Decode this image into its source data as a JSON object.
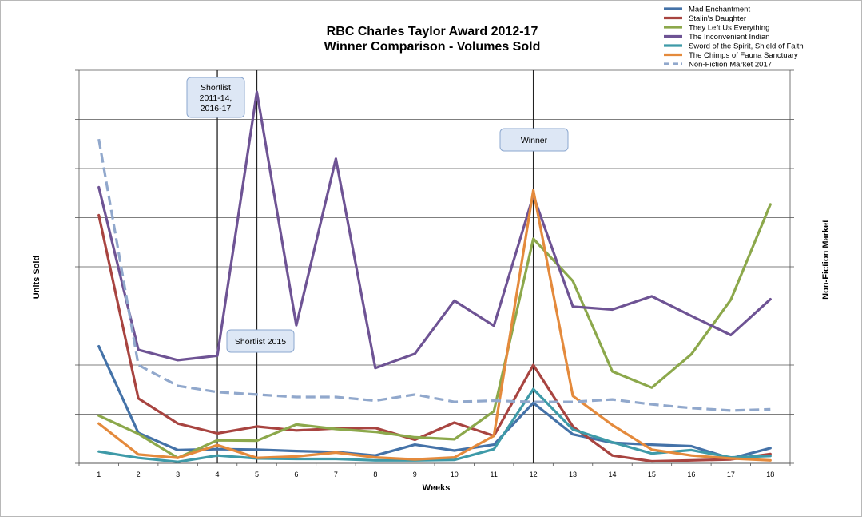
{
  "chart_data": {
    "type": "line",
    "title": "RBC Charles Taylor Award 2012-17",
    "subtitle": "Winner Comparison - Volumes Sold",
    "xlabel": "Weeks",
    "ylabel": "Units Sold",
    "y2label": "Non-Fiction Market",
    "grid": true,
    "legend_position": "top-right",
    "x": [
      1,
      2,
      3,
      4,
      5,
      6,
      7,
      8,
      9,
      10,
      11,
      12,
      13,
      14,
      15,
      16,
      17,
      18
    ],
    "ylim": [
      0,
      8
    ],
    "y2lim": [
      0,
      3.2
    ],
    "series": [
      {
        "name": "Mad Enchantment",
        "color": "#4472a8",
        "axis": "left",
        "values": [
          2.38,
          0.62,
          0.27,
          0.29,
          0.28,
          0.25,
          0.23,
          0.16,
          0.38,
          0.26,
          0.38,
          1.23,
          0.59,
          0.42,
          0.38,
          0.35,
          0.1,
          0.31
        ]
      },
      {
        "name": "Stalin's Daughter",
        "color": "#a84440",
        "axis": "left",
        "values": [
          5.05,
          1.32,
          0.81,
          0.61,
          0.75,
          0.67,
          0.71,
          0.72,
          0.48,
          0.83,
          0.56,
          2.0,
          0.75,
          0.16,
          0.04,
          0.06,
          0.08,
          0.19
        ]
      },
      {
        "name": "They Left Us Everything",
        "color": "#8ca84b",
        "axis": "left",
        "values": [
          0.97,
          0.6,
          0.11,
          0.47,
          0.46,
          0.79,
          0.7,
          0.64,
          0.53,
          0.49,
          1.06,
          4.57,
          3.71,
          1.87,
          1.54,
          2.22,
          3.33,
          5.27
        ]
      },
      {
        "name": "The Inconvenient Indian",
        "color": "#6e5394",
        "axis": "left",
        "values": [
          5.62,
          2.31,
          2.1,
          2.19,
          7.56,
          2.81,
          6.2,
          1.94,
          2.23,
          3.31,
          2.8,
          5.45,
          3.19,
          3.13,
          3.4,
          3.0,
          2.61,
          3.34
        ]
      },
      {
        "name": "Sword of the Spirit, Shield of Faith",
        "color": "#3e9aa8",
        "axis": "left",
        "values": [
          0.24,
          0.11,
          0.03,
          0.16,
          0.1,
          0.09,
          0.09,
          0.06,
          0.06,
          0.07,
          0.29,
          1.51,
          0.69,
          0.43,
          0.2,
          0.27,
          0.12,
          0.15
        ]
      },
      {
        "name": "The Chimps of Fauna Sanctuary",
        "color": "#e48a3c",
        "axis": "left",
        "values": [
          0.81,
          0.18,
          0.11,
          0.37,
          0.11,
          0.14,
          0.22,
          0.12,
          0.08,
          0.12,
          0.56,
          5.56,
          1.37,
          0.78,
          0.28,
          0.16,
          0.1,
          0.06
        ]
      },
      {
        "name": "Non-Fiction Market 2017",
        "color": "#91a8cc",
        "axis": "right",
        "dashed": true,
        "values": [
          2.64,
          0.8,
          0.63,
          0.58,
          0.56,
          0.54,
          0.54,
          0.51,
          0.56,
          0.5,
          0.51,
          0.5,
          0.5,
          0.52,
          0.48,
          0.45,
          0.43,
          0.44
        ]
      }
    ],
    "annotations": [
      {
        "label": "Shortlist 2011-14, 2016-17",
        "lines": [
          "Shortlist",
          "2011-14,",
          "2016-17"
        ],
        "week": 4
      },
      {
        "label": "Shortlist 2015",
        "lines": [
          "Shortlist 2015"
        ],
        "week": 5
      },
      {
        "label": "Winner",
        "lines": [
          "Winner"
        ],
        "week": 12
      }
    ]
  }
}
